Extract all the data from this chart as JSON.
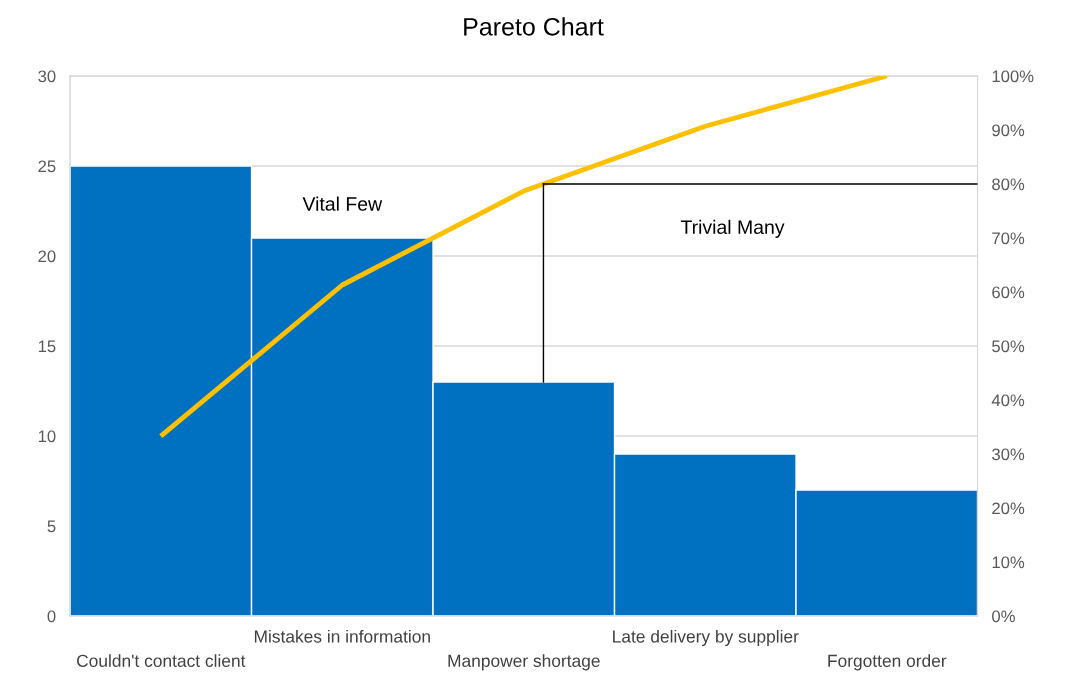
{
  "chart_data": {
    "type": "bar",
    "title": "Pareto Chart",
    "categories": [
      "Couldn't contact client",
      "Mistakes in information",
      "Manpower shortage",
      "Late delivery by supplier",
      "Forgotten order"
    ],
    "series": [
      {
        "color": "#0070c0",
        "values": [
          25,
          21,
          13,
          9,
          7
        ]
      },
      {
        "type": "line",
        "axis": "y2",
        "color": "#ffc000",
        "values": [
          33.3,
          61.3,
          78.7,
          90.7,
          100
        ]
      }
    ],
    "ylim": [
      0,
      30
    ],
    "yticks": [
      0,
      5,
      10,
      15,
      20,
      25,
      30
    ],
    "y2lim": [
      0,
      100
    ],
    "y2ticks": [
      {
        "value": 0,
        "label": "0%"
      },
      {
        "value": 10,
        "label": "10%"
      },
      {
        "value": 20,
        "label": "20%"
      },
      {
        "value": 30,
        "label": "30%"
      },
      {
        "value": 40,
        "label": "40%"
      },
      {
        "value": 50,
        "label": "50%"
      },
      {
        "value": 60,
        "label": "60%"
      },
      {
        "value": 70,
        "label": "70%"
      },
      {
        "value": 80,
        "label": "80%"
      },
      {
        "value": 90,
        "label": "90%"
      },
      {
        "value": 100,
        "label": "100%"
      }
    ],
    "ref_lines": [
      {
        "axis": "y2",
        "value": 80,
        "color": "#000000"
      }
    ],
    "annotations": [
      "Vital Few",
      "Trivial Many"
    ],
    "grid": "y",
    "legend": false
  }
}
